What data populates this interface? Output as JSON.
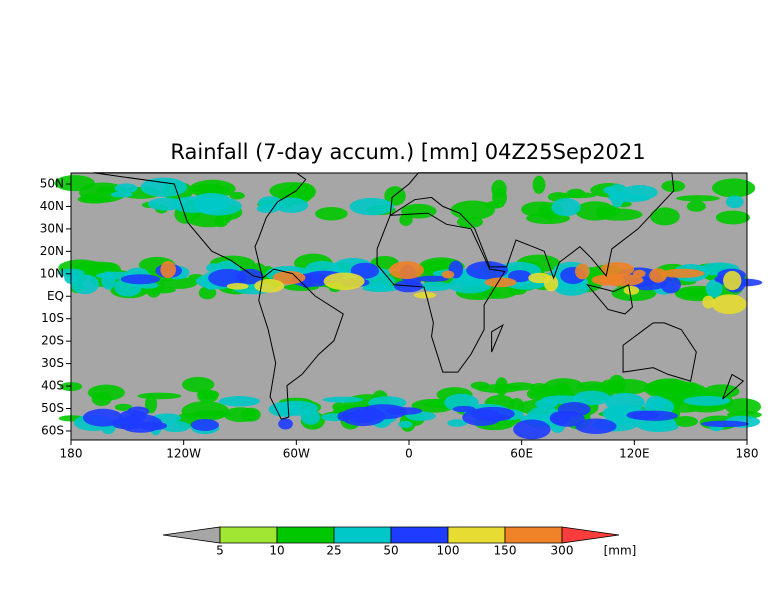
{
  "map": {
    "title": "Rainfall (7-day accum.) [mm] 04Z25Sep2021",
    "lat_labels": [
      "50N",
      "40N",
      "30N",
      "20N",
      "10N",
      "EQ",
      "10S",
      "20S",
      "30S",
      "40S",
      "50S",
      "60S"
    ],
    "lon_labels": [
      "180",
      "120W",
      "60W",
      "0",
      "60E",
      "120E",
      "180"
    ]
  },
  "colorbar": {
    "levels": [
      5,
      10,
      25,
      50,
      100,
      150,
      300
    ],
    "unit": "[mm]",
    "colors": [
      "#a6a6a6",
      "#a0e632",
      "#00c800",
      "#00c8c8",
      "#1e3cff",
      "#e6dc32",
      "#f08228",
      "#fa3c3c"
    ]
  }
}
